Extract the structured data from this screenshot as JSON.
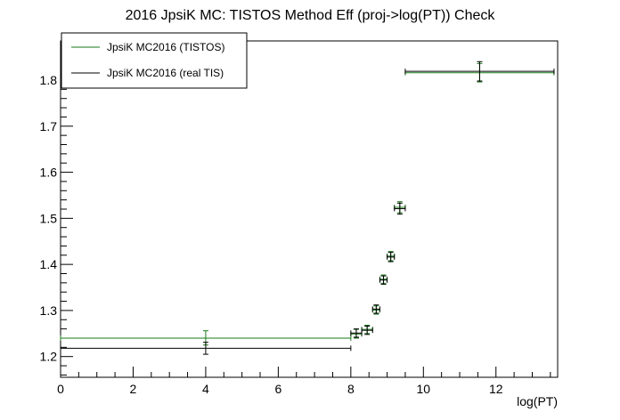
{
  "chart_data": {
    "type": "scatter",
    "title": "2016 JpsiK MC: TISTOS Method Eff (proj->log(PT)) Check",
    "xlabel": "log(PT)",
    "ylabel": "",
    "xlim": [
      0,
      13.7
    ],
    "ylim": [
      1.155,
      1.885
    ],
    "x_ticks": [
      0,
      2,
      4,
      6,
      8,
      10,
      12
    ],
    "x_tick_labels": [
      "0",
      "2",
      "4",
      "6",
      "8",
      "10",
      "12"
    ],
    "y_ticks": [
      1.2,
      1.3,
      1.4,
      1.5,
      1.6,
      1.7,
      1.8
    ],
    "y_tick_labels": [
      "1.2",
      "1.3",
      "1.4",
      "1.5",
      "1.6",
      "1.7",
      "1.8"
    ],
    "grid": false,
    "legend_position": "top-left",
    "series": [
      {
        "name": "JpsiK MC2016 (TISTOS)",
        "color": "#1a7a1a",
        "points": [
          {
            "x": 4.0,
            "xlow": 0.0,
            "xhigh": 8.0,
            "y": 1.24,
            "ylow": 1.225,
            "yhigh": 1.256
          },
          {
            "x": 8.15,
            "xlow": 8.0,
            "xhigh": 8.3,
            "y": 1.249,
            "ylow": 1.24,
            "yhigh": 1.259
          },
          {
            "x": 8.45,
            "xlow": 8.3,
            "xhigh": 8.6,
            "y": 1.259,
            "ylow": 1.25,
            "yhigh": 1.268
          },
          {
            "x": 8.7,
            "xlow": 8.6,
            "xhigh": 8.8,
            "y": 1.301,
            "ylow": 1.292,
            "yhigh": 1.31
          },
          {
            "x": 8.9,
            "xlow": 8.8,
            "xhigh": 9.0,
            "y": 1.368,
            "ylow": 1.359,
            "yhigh": 1.377
          },
          {
            "x": 9.1,
            "xlow": 9.0,
            "xhigh": 9.2,
            "y": 1.418,
            "ylow": 1.408,
            "yhigh": 1.428
          },
          {
            "x": 9.35,
            "xlow": 9.2,
            "xhigh": 9.5,
            "y": 1.524,
            "ylow": 1.512,
            "yhigh": 1.536
          },
          {
            "x": 11.55,
            "xlow": 9.5,
            "xhigh": 13.6,
            "y": 1.816,
            "ylow": 1.796,
            "yhigh": 1.836
          }
        ]
      },
      {
        "name": "JpsiK MC2016 (real TIS)",
        "color": "#000000",
        "points": [
          {
            "x": 4.0,
            "xlow": 0.0,
            "xhigh": 8.0,
            "y": 1.218,
            "ylow": 1.205,
            "yhigh": 1.231
          },
          {
            "x": 8.15,
            "xlow": 8.0,
            "xhigh": 8.3,
            "y": 1.251,
            "ylow": 1.242,
            "yhigh": 1.26
          },
          {
            "x": 8.45,
            "xlow": 8.3,
            "xhigh": 8.6,
            "y": 1.257,
            "ylow": 1.248,
            "yhigh": 1.266
          },
          {
            "x": 8.7,
            "xlow": 8.6,
            "xhigh": 8.8,
            "y": 1.303,
            "ylow": 1.294,
            "yhigh": 1.312
          },
          {
            "x": 8.9,
            "xlow": 8.8,
            "xhigh": 9.0,
            "y": 1.366,
            "ylow": 1.357,
            "yhigh": 1.375
          },
          {
            "x": 9.1,
            "xlow": 9.0,
            "xhigh": 9.2,
            "y": 1.416,
            "ylow": 1.406,
            "yhigh": 1.426
          },
          {
            "x": 9.35,
            "xlow": 9.2,
            "xhigh": 9.5,
            "y": 1.521,
            "ylow": 1.509,
            "yhigh": 1.533
          },
          {
            "x": 11.55,
            "xlow": 9.5,
            "xhigh": 13.6,
            "y": 1.819,
            "ylow": 1.798,
            "yhigh": 1.84
          }
        ]
      }
    ]
  }
}
